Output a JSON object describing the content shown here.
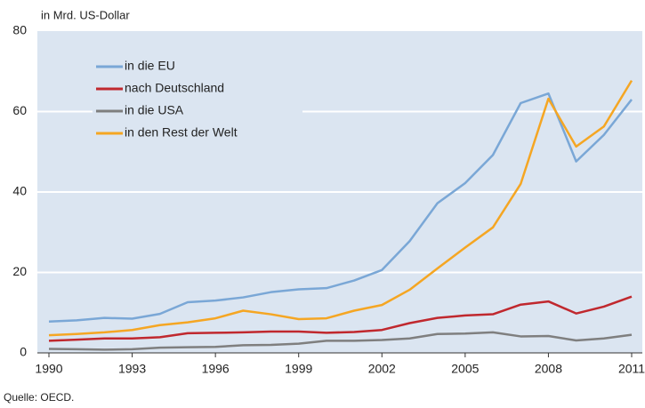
{
  "chart_data": {
    "type": "line",
    "y_axis_label": "in Mrd. US-Dollar",
    "source": "Quelle: OECD.",
    "x": [
      1990,
      1991,
      1992,
      1993,
      1994,
      1995,
      1996,
      1997,
      1998,
      1999,
      2000,
      2001,
      2002,
      2003,
      2004,
      2005,
      2006,
      2007,
      2008,
      2009,
      2010,
      2011
    ],
    "series": [
      {
        "name": "in die EU",
        "color": "#7aa7d6",
        "values": [
          7.8,
          8.1,
          8.7,
          8.5,
          9.7,
          12.6,
          13.0,
          13.8,
          15.1,
          15.8,
          16.1,
          18.0,
          20.6,
          27.8,
          37.2,
          42.2,
          49.2,
          62.1,
          64.5,
          47.6,
          54.2,
          63.0
        ]
      },
      {
        "name": "nach Deutschland",
        "color": "#c0282e",
        "values": [
          3.0,
          3.3,
          3.6,
          3.6,
          3.9,
          4.9,
          5.0,
          5.1,
          5.3,
          5.3,
          5.0,
          5.2,
          5.7,
          7.4,
          8.7,
          9.3,
          9.6,
          12.0,
          12.8,
          9.8,
          11.5,
          14.0
        ]
      },
      {
        "name": "in die USA",
        "color": "#7f7f7f",
        "values": [
          1.0,
          0.9,
          0.8,
          0.9,
          1.3,
          1.4,
          1.5,
          1.9,
          2.0,
          2.3,
          3.0,
          3.0,
          3.2,
          3.6,
          4.7,
          4.8,
          5.1,
          4.1,
          4.2,
          3.1,
          3.6,
          4.5
        ]
      },
      {
        "name": "in den Rest der Welt",
        "color": "#f5a623",
        "values": [
          4.4,
          4.7,
          5.1,
          5.7,
          6.9,
          7.6,
          8.6,
          10.5,
          9.6,
          8.4,
          8.6,
          10.5,
          11.9,
          15.7,
          21.0,
          26.2,
          31.2,
          42.0,
          63.2,
          51.3,
          56.3,
          67.7
        ]
      }
    ],
    "xlim": [
      1990,
      2011
    ],
    "xticks": [
      1990,
      1993,
      1996,
      1999,
      2002,
      2005,
      2008,
      2011
    ],
    "ylim": [
      0,
      80
    ],
    "yticks": [
      0,
      20,
      40,
      60,
      80
    ],
    "grid": true,
    "legend": "upper left",
    "plot_background": "#dbe5f1"
  }
}
